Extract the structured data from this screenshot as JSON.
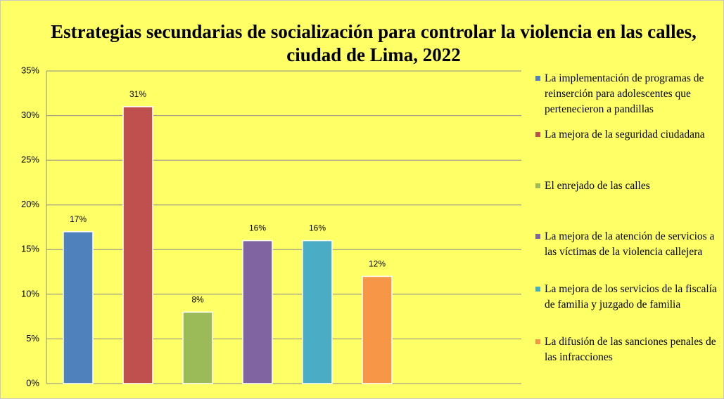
{
  "chart_data": {
    "type": "bar",
    "title": "Estrategias secundarias de socialización para controlar la violencia en las calles, ciudad de Lima, 2022",
    "series": [
      {
        "name": "La implementación de programas de reinserción para adolescentes que pertenecieron a pandillas",
        "color": "#4f81bd",
        "values": [
          17
        ],
        "value_labels": [
          "17%"
        ]
      },
      {
        "name": "La mejora de la seguridad ciudadana",
        "color": "#c0504d",
        "values": [
          31
        ],
        "value_labels": [
          "31%"
        ]
      },
      {
        "name": "El enrejado de las calles",
        "color": "#9bbb59",
        "values": [
          8
        ],
        "value_labels": [
          "8%"
        ]
      },
      {
        "name": "La mejora de la atención de servicios a las víctimas de la violencia callejera",
        "color": "#8064a2",
        "values": [
          16
        ],
        "value_labels": [
          "16%"
        ]
      },
      {
        "name": "La mejora de los servicios de la fiscalía de familia y juzgado de familia",
        "color": "#4bacc6",
        "values": [
          16
        ],
        "value_labels": [
          "16%"
        ]
      },
      {
        "name": "La difusión de las sanciones penales de las infracciones",
        "color": "#f79646",
        "values": [
          12
        ],
        "value_labels": [
          "12%"
        ]
      }
    ],
    "ylim": [
      0,
      35
    ],
    "yticks": [
      {
        "value": 0,
        "label": "0%"
      },
      {
        "value": 5,
        "label": "5%"
      },
      {
        "value": 10,
        "label": "10%"
      },
      {
        "value": 15,
        "label": "15%"
      },
      {
        "value": 20,
        "label": "20%"
      },
      {
        "value": 25,
        "label": "25%"
      },
      {
        "value": 30,
        "label": "30%"
      },
      {
        "value": 35,
        "label": "35%"
      }
    ],
    "grid": true,
    "legend": "right"
  }
}
